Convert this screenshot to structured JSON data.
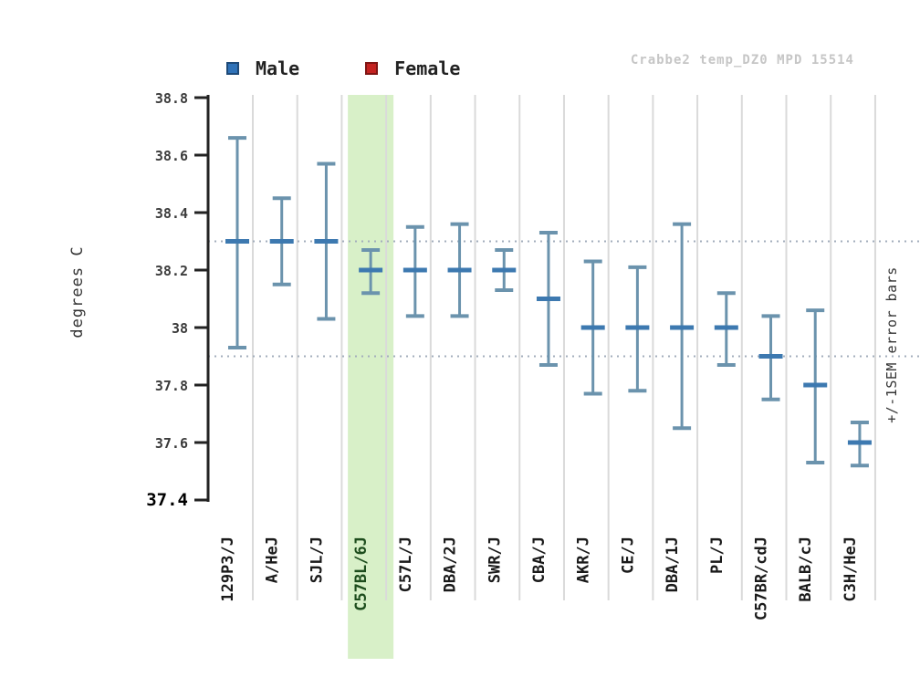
{
  "header": {
    "watermark": "Crabbe2 temp_DZ0 MPD 15514"
  },
  "legend": {
    "items": [
      {
        "label": "Male",
        "color": "#2f72b8"
      },
      {
        "label": "Female",
        "color": "#c42220"
      }
    ]
  },
  "annotations": {
    "right_note": "+/-1SEM error bars"
  },
  "chart_data": {
    "type": "errorbar",
    "title": "Crabbe2 temp_DZ0 MPD 15514",
    "ylabel": "degrees C",
    "xlabel": "",
    "ylim": [
      37.4,
      38.8
    ],
    "yticks": [
      38.8,
      38.6,
      38.4,
      38.2,
      38,
      37.8,
      37.6,
      37.4
    ],
    "grid": "vertical",
    "legend_position": "top",
    "reference_lines": [
      38.3,
      37.9
    ],
    "error_bar_note": "+/-1SEM error bars",
    "highlighted_category": "C57BL/6J",
    "categories": [
      "129P3/J",
      "A/HeJ",
      "SJL/J",
      "C57BL/6J",
      "C57L/J",
      "DBA/2J",
      "SWR/J",
      "CBA/J",
      "AKR/J",
      "CE/J",
      "DBA/1J",
      "PL/J",
      "C57BR/cdJ",
      "BALB/cJ",
      "C3H/HeJ"
    ],
    "series": [
      {
        "name": "Male",
        "points": [
          {
            "strain": "129P3/J",
            "mean": 38.3,
            "low": 37.93,
            "high": 38.66
          },
          {
            "strain": "A/HeJ",
            "mean": 38.3,
            "low": 38.15,
            "high": 38.45
          },
          {
            "strain": "SJL/J",
            "mean": 38.3,
            "low": 38.03,
            "high": 38.57
          },
          {
            "strain": "C57BL/6J",
            "mean": 38.2,
            "low": 38.12,
            "high": 38.27,
            "highlight": true
          },
          {
            "strain": "C57L/J",
            "mean": 38.2,
            "low": 38.04,
            "high": 38.35
          },
          {
            "strain": "DBA/2J",
            "mean": 38.2,
            "low": 38.04,
            "high": 38.36
          },
          {
            "strain": "SWR/J",
            "mean": 38.2,
            "low": 38.13,
            "high": 38.27
          },
          {
            "strain": "CBA/J",
            "mean": 38.1,
            "low": 37.87,
            "high": 38.33
          },
          {
            "strain": "AKR/J",
            "mean": 38.0,
            "low": 37.77,
            "high": 38.23
          },
          {
            "strain": "CE/J",
            "mean": 38.0,
            "low": 37.78,
            "high": 38.21
          },
          {
            "strain": "DBA/1J",
            "mean": 38.0,
            "low": 37.65,
            "high": 38.36
          },
          {
            "strain": "PL/J",
            "mean": 38.0,
            "low": 37.87,
            "high": 38.12
          },
          {
            "strain": "C57BR/cdJ",
            "mean": 37.9,
            "low": 37.75,
            "high": 38.04
          },
          {
            "strain": "BALB/cJ",
            "mean": 37.8,
            "low": 37.53,
            "high": 38.06
          },
          {
            "strain": "C3H/HeJ",
            "mean": 37.6,
            "low": 37.52,
            "high": 37.67
          }
        ]
      }
    ],
    "colors": {
      "bar_line": "#6b93ad",
      "mean_tick": "#3d79b0",
      "male_legend": "#2f72b8",
      "female_legend": "#c42220",
      "highlight_band": "#d8f0c8",
      "gridline": "#dadada",
      "reference_line": "#a3aebc",
      "axis": "#222222",
      "tick_label": "#3c3c3c",
      "strain_label": "#1a1a1a",
      "highlight_label": "#1d4d1d",
      "watermark": "#c6c6c6"
    }
  }
}
